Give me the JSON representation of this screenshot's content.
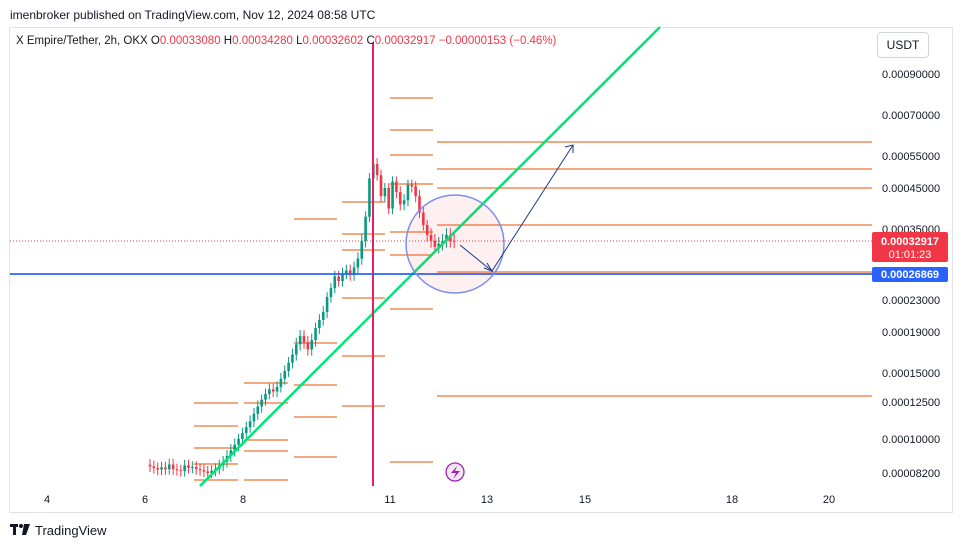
{
  "header": {
    "publisher_text": "imenbroker published on TradingView.com, Nov 12, 2024 08:58 UTC"
  },
  "legend": {
    "symbol": "X Empire/Tether, 2h, OKX",
    "o_label": "O",
    "o_value": "0.00033080",
    "h_label": "H",
    "h_value": "0.00034280",
    "l_label": "L",
    "l_value": "0.00032602",
    "c_label": "C",
    "c_value": "0.00032917",
    "change": "−0.00000153 (−0.46%)"
  },
  "currency_button": "USDT",
  "footer": {
    "brand": "TradingView",
    "logo_icon": "tradingview-logo-icon"
  },
  "colors": {
    "up": "#089981",
    "down": "#f23645",
    "trendline": "#00e676",
    "vline": "#e91e63",
    "hline": "#2962ff",
    "levels": "#e65100",
    "arrow": "#1e3a8a"
  },
  "chart_data": {
    "type": "candlestick",
    "price_axis": [
      "0.00090000",
      "0.00070000",
      "0.00055000",
      "0.00045000",
      "0.00035000",
      "0.00023000",
      "0.00019000",
      "0.00015000",
      "0.00012500",
      "0.00010000",
      "0.00008200"
    ],
    "time_axis": [
      "4",
      "6",
      "8",
      "11",
      "13",
      "15",
      "18",
      "20"
    ],
    "last_price_label": {
      "price": "0.00032917",
      "countdown": "01:01:23"
    },
    "horizontal_line_label": "0.00026869",
    "candles_close": [
      8.55e-05,
      8.46e-05,
      8.38e-05,
      8.5e-05,
      8.4e-05,
      8.65e-05,
      8.4e-05,
      8.35e-05,
      8.3e-05,
      8.6e-05,
      8.48e-05,
      8.52e-05,
      8.4e-05,
      8.35e-05,
      8.28e-05,
      8.2e-05,
      8.32e-05,
      8.42e-05,
      8.6e-05,
      8.8e-05,
      9.1e-05,
      9.4e-05,
      9.7e-05,
      0.0001,
      0.000104,
      0.000108,
      0.000112,
      0.000117,
      0.000122,
      0.000127,
      0.000132,
      0.000136,
      0.000134,
      0.000138,
      0.000145,
      0.000152,
      0.00016,
      0.000168,
      0.000178,
      0.000186,
      0.00018,
      0.000173,
      0.000182,
      0.000195,
      0.000205,
      0.000215,
      0.000235,
      0.00025,
      0.00027,
      0.000262,
      0.000275,
      0.00028,
      0.000272,
      0.000285,
      0.0003,
      0.00033,
      0.00038,
      0.00048,
      0.000525,
      0.00049,
      0.00043,
      0.00045,
      0.0004,
      0.00047,
      0.00044,
      0.00041,
      0.00042,
      0.00046,
      0.000455,
      0.00043,
      0.00039,
      0.00036,
      0.00034,
      0.00033,
      0.00032,
      0.000325,
      0.00033,
      0.00034,
      0.00033,
      0.00032917
    ]
  }
}
